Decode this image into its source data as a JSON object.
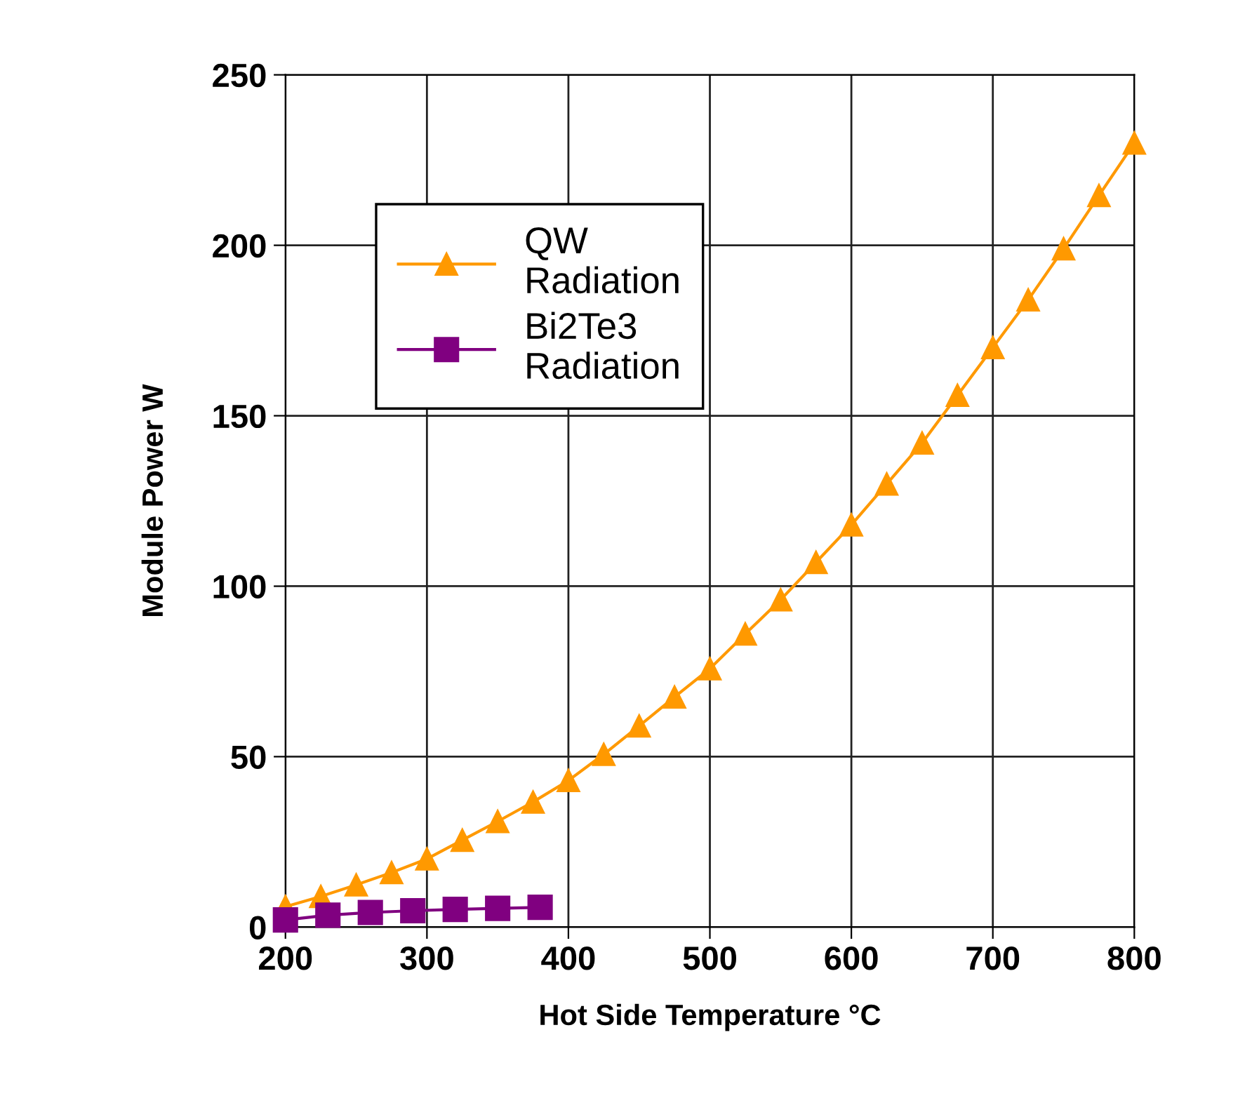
{
  "chart_data": {
    "type": "line",
    "xlabel": "Hot Side Temperature °C",
    "ylabel": "Module Power W",
    "xlim": [
      200,
      800
    ],
    "xticks": [
      200,
      300,
      400,
      500,
      600,
      700,
      800
    ],
    "ylim": [
      0,
      250
    ],
    "yticks": [
      0,
      50,
      100,
      150,
      200,
      250
    ],
    "grid": true,
    "legend": "top left",
    "series": [
      {
        "name": "QW\nRadiation",
        "color": "#ff9900",
        "marker": "triangle",
        "x": [
          200,
          225,
          250,
          275,
          300,
          325,
          350,
          375,
          400,
          425,
          450,
          475,
          500,
          525,
          550,
          575,
          600,
          625,
          650,
          675,
          700,
          725,
          750,
          775,
          800
        ],
        "values": [
          6,
          9,
          12.4,
          16,
          20,
          25.5,
          31,
          36.7,
          43,
          50.7,
          59,
          67.5,
          75.8,
          86,
          96,
          107,
          118,
          130,
          142,
          156,
          170,
          184,
          199,
          214.6,
          230
        ]
      },
      {
        "name": "Bi2Te3\nRadiation",
        "color": "#800080",
        "marker": "square",
        "x": [
          200,
          230,
          260,
          290,
          320,
          350,
          380
        ],
        "values": [
          2.1,
          3.5,
          4.3,
          4.8,
          5.2,
          5.5,
          5.8
        ]
      }
    ]
  }
}
